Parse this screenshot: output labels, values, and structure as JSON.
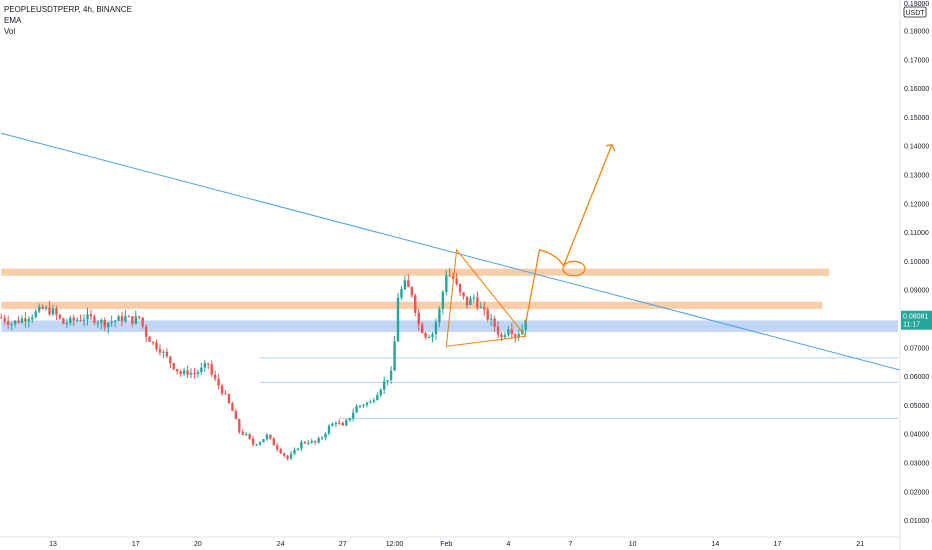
{
  "legend": {
    "symbol_line": "PEOPLEUSDTPERP, 4h, BINANCE",
    "indicator_1": "EMA",
    "indicator_2": "Vol"
  },
  "price_axis": {
    "currency": "USDT",
    "current_price": "0.08081",
    "countdown": "11:17",
    "top_partial_label": "0.19000"
  },
  "colors": {
    "up": "#26a69a",
    "down": "#ef5350",
    "trendline": "#4aa3e6",
    "resistance_zone": "#f7c59a",
    "support_zone": "#b7cff5",
    "drawing": "#f57c00",
    "price_tag": "#26a69a"
  },
  "chart_data": {
    "type": "candlestick",
    "ylim": [
      0.005,
      0.19
    ],
    "y_ticks": [
      {
        "v": 0.18,
        "label": "0.18000"
      },
      {
        "v": 0.17,
        "label": "0.17000"
      },
      {
        "v": 0.16,
        "label": "0.16000"
      },
      {
        "v": 0.15,
        "label": "0.15000"
      },
      {
        "v": 0.14,
        "label": "0.14000"
      },
      {
        "v": 0.13,
        "label": "0.13000"
      },
      {
        "v": 0.12,
        "label": "0.12000"
      },
      {
        "v": 0.11,
        "label": "0.11000"
      },
      {
        "v": 0.1,
        "label": "0.10000"
      },
      {
        "v": 0.09,
        "label": "0.09000"
      },
      {
        "v": 0.07,
        "label": "0.07000"
      },
      {
        "v": 0.06,
        "label": "0.06000"
      },
      {
        "v": 0.05,
        "label": "0.05000"
      },
      {
        "v": 0.04,
        "label": "0.04000"
      },
      {
        "v": 0.03,
        "label": "0.03000"
      },
      {
        "v": 0.02,
        "label": "0.02000"
      },
      {
        "v": 0.01,
        "label": "0.01000"
      }
    ],
    "x_ticks": [
      {
        "t": 0,
        "label": "13"
      },
      {
        "t": 24,
        "label": "17"
      },
      {
        "t": 42,
        "label": "20"
      },
      {
        "t": 66,
        "label": "24"
      },
      {
        "t": 84,
        "label": "27"
      },
      {
        "t": 99,
        "label": "12:00"
      },
      {
        "t": 114,
        "label": "Feb"
      },
      {
        "t": 132,
        "label": "4"
      },
      {
        "t": 150,
        "label": "7"
      },
      {
        "t": 168,
        "label": "10"
      },
      {
        "t": 192,
        "label": "14"
      },
      {
        "t": 210,
        "label": "17"
      },
      {
        "t": 234,
        "label": "21"
      }
    ],
    "price_anchors": [
      [
        -15,
        0.0805
      ],
      [
        -12,
        0.0785
      ],
      [
        -9,
        0.08
      ],
      [
        -6,
        0.0815
      ],
      [
        -3,
        0.0835
      ],
      [
        0,
        0.0825
      ],
      [
        3,
        0.0785
      ],
      [
        6,
        0.0795
      ],
      [
        9,
        0.0805
      ],
      [
        12,
        0.08
      ],
      [
        15,
        0.0785
      ],
      [
        18,
        0.0795
      ],
      [
        21,
        0.0805
      ],
      [
        23,
        0.0795
      ],
      [
        25,
        0.0805
      ],
      [
        27,
        0.0745
      ],
      [
        29,
        0.0715
      ],
      [
        31,
        0.0695
      ],
      [
        33,
        0.0665
      ],
      [
        35,
        0.0635
      ],
      [
        37,
        0.061
      ],
      [
        39,
        0.0615
      ],
      [
        41,
        0.061
      ],
      [
        43,
        0.0625
      ],
      [
        45,
        0.0645
      ],
      [
        46,
        0.0605
      ],
      [
        48,
        0.057
      ],
      [
        50,
        0.053
      ],
      [
        52,
        0.048
      ],
      [
        54,
        0.041
      ],
      [
        56,
        0.0395
      ],
      [
        58,
        0.0365
      ],
      [
        60,
        0.0375
      ],
      [
        62,
        0.0395
      ],
      [
        64,
        0.0365
      ],
      [
        66,
        0.034
      ],
      [
        68,
        0.0315
      ],
      [
        70,
        0.034
      ],
      [
        72,
        0.037
      ],
      [
        74,
        0.0375
      ],
      [
        76,
        0.037
      ],
      [
        78,
        0.039
      ],
      [
        80,
        0.0425
      ],
      [
        82,
        0.0445
      ],
      [
        84,
        0.0425
      ],
      [
        86,
        0.046
      ],
      [
        88,
        0.0495
      ],
      [
        90,
        0.0505
      ],
      [
        92,
        0.051
      ],
      [
        94,
        0.0545
      ],
      [
        96,
        0.058
      ],
      [
        98,
        0.061
      ],
      [
        99,
        0.072
      ],
      [
        100,
        0.088
      ],
      [
        102,
        0.092
      ],
      [
        104,
        0.089
      ],
      [
        106,
        0.078
      ],
      [
        108,
        0.0745
      ],
      [
        110,
        0.075
      ],
      [
        112,
        0.083
      ],
      [
        114,
        0.096
      ],
      [
        116,
        0.094
      ],
      [
        118,
        0.0885
      ],
      [
        120,
        0.0855
      ],
      [
        122,
        0.0875
      ],
      [
        124,
        0.0835
      ],
      [
        126,
        0.0805
      ],
      [
        128,
        0.0775
      ],
      [
        130,
        0.0735
      ],
      [
        132,
        0.0775
      ],
      [
        134,
        0.0745
      ],
      [
        136,
        0.0765
      ],
      [
        137,
        0.0808
      ]
    ],
    "trendline": {
      "from": [
        -15,
        0.1445
      ],
      "to": [
        248,
        0.0615
      ]
    },
    "zones": [
      {
        "name": "resistance-upper",
        "t0": -15,
        "t1": 225,
        "y0": 0.095,
        "y1": 0.0975
      },
      {
        "name": "resistance-lower",
        "t0": -15,
        "t1": 223,
        "y0": 0.0835,
        "y1": 0.086
      },
      {
        "name": "support",
        "t0": -15,
        "t1": 248,
        "y0": 0.0755,
        "y1": 0.0795
      }
    ],
    "h_levels": [
      {
        "t0": 60,
        "t1": 248,
        "v": 0.0775
      },
      {
        "t0": 60,
        "t1": 248,
        "v": 0.0665
      },
      {
        "t0": 60,
        "t1": 248,
        "v": 0.058
      },
      {
        "t0": 83,
        "t1": 248,
        "v": 0.0455
      }
    ],
    "triangle": [
      [
        117,
        0.104
      ],
      [
        137,
        0.074
      ],
      [
        114,
        0.0705
      ]
    ],
    "projection_path": [
      [
        137,
        0.0785
      ],
      [
        141,
        0.104
      ],
      [
        146,
        0.1025
      ],
      [
        148,
        0.0985
      ],
      [
        155,
        0.1195
      ],
      [
        162,
        0.1405
      ]
    ],
    "ellipse": {
      "center": [
        151,
        0.0975
      ],
      "rx_t": 3.2,
      "ry_v": 0.0025
    }
  }
}
